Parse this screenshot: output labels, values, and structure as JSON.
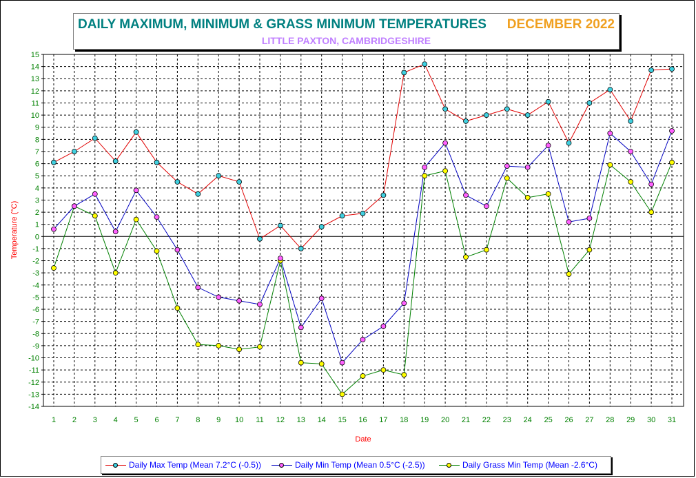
{
  "colors": {
    "max_line": "#e00000",
    "max_marker": "#40d0e0",
    "min_line": "#0000c0",
    "min_marker": "#ff60ff",
    "grass_line": "#008000",
    "grass_marker": "#ffff00",
    "tick_text": "#008000",
    "axis_label": "#ff0000",
    "legend_text": "#0000ff"
  },
  "header": {
    "title": "DAILY MAXIMUM, MINIMUM & GRASS MINIMUM TEMPERATURES",
    "period": "DECEMBER 2022",
    "subtitle": "LITTLE PAXTON, CAMBRIDGESHIRE"
  },
  "chart_data": {
    "type": "line",
    "xlabel": "Date",
    "ylabel": "Temperature (°C)",
    "ylim": [
      -14,
      15
    ],
    "grid": true,
    "legend_position": "bottom",
    "x": [
      1,
      2,
      3,
      4,
      5,
      6,
      7,
      8,
      9,
      10,
      11,
      12,
      13,
      14,
      15,
      16,
      17,
      18,
      19,
      20,
      21,
      22,
      23,
      24,
      25,
      26,
      27,
      28,
      29,
      30,
      31
    ],
    "series": [
      {
        "name": "Daily Max Temp (Mean 7.2°C (-0.5))",
        "values": [
          6.1,
          7.0,
          8.1,
          6.2,
          8.6,
          6.1,
          4.5,
          3.5,
          5.0,
          4.5,
          -0.2,
          0.9,
          -1.0,
          0.8,
          1.7,
          1.9,
          3.4,
          13.5,
          14.2,
          10.5,
          9.5,
          10.0,
          10.5,
          10.0,
          11.1,
          7.7,
          11.0,
          12.1,
          9.5,
          13.7,
          13.8
        ]
      },
      {
        "name": "Daily Min Temp (Mean 0.5°C (-2.5))",
        "values": [
          0.6,
          2.5,
          3.5,
          0.4,
          3.8,
          1.6,
          -1.1,
          -4.2,
          -5.0,
          -5.3,
          -5.6,
          -1.8,
          -7.5,
          -5.1,
          -10.4,
          -8.5,
          -7.4,
          -5.5,
          5.7,
          7.7,
          3.4,
          2.5,
          5.8,
          5.7,
          7.5,
          1.2,
          1.5,
          8.5,
          7.0,
          4.3,
          8.7
        ]
      },
      {
        "name": "Daily Grass Min Temp (Mean -2.6°C)",
        "values": [
          -2.6,
          2.5,
          1.7,
          -3.0,
          1.4,
          -1.2,
          -5.9,
          -8.9,
          -9.0,
          -9.3,
          -9.1,
          -2.0,
          -10.4,
          -10.5,
          -13.0,
          -11.5,
          -11.0,
          -11.4,
          5.0,
          5.4,
          -1.7,
          -1.1,
          4.8,
          3.2,
          3.5,
          -3.1,
          -1.1,
          5.9,
          4.5,
          2.0,
          6.1
        ]
      }
    ]
  }
}
